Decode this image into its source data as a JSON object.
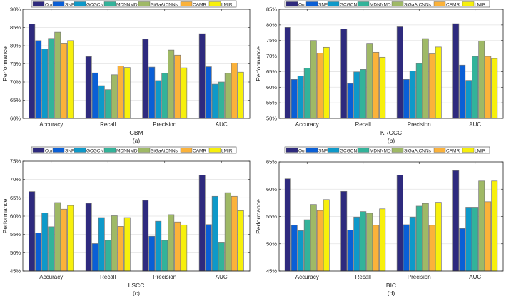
{
  "legend_series": [
    "Ours",
    "SNF",
    "GCGCN",
    "MDNNMD",
    "SiGaAtCNNs",
    "CAMR",
    "LMIR"
  ],
  "series_colors": [
    "#2e2a7e",
    "#0a5fd6",
    "#0e99c9",
    "#33b39a",
    "#9fb966",
    "#fbb23a",
    "#f7f00c"
  ],
  "chart_data": [
    {
      "type": "bar",
      "panel_label": "(a)",
      "xlabel": "GBM",
      "ylabel": "Performance",
      "ylim": [
        60,
        90
      ],
      "yticks": [
        60,
        65,
        70,
        75,
        80,
        85,
        90
      ],
      "tick_suffix": "%",
      "grid": true,
      "legend_placement": "top-center",
      "categories": [
        "Accuracy",
        "Recall",
        "Precision",
        "AUC"
      ],
      "series": [
        {
          "name": "Ours",
          "values": [
            86.0,
            77.0,
            81.8,
            83.3
          ]
        },
        {
          "name": "SNF",
          "values": [
            81.4,
            72.5,
            74.1,
            74.2
          ]
        },
        {
          "name": "GCGCN",
          "values": [
            79.1,
            69.0,
            70.4,
            69.4
          ]
        },
        {
          "name": "MDNNMD",
          "values": [
            82.0,
            67.9,
            72.4,
            70.0
          ]
        },
        {
          "name": "SiGaAtCNNs",
          "values": [
            83.7,
            72.0,
            78.8,
            72.4
          ]
        },
        {
          "name": "CAMR",
          "values": [
            80.7,
            74.4,
            77.4,
            75.2
          ]
        },
        {
          "name": "LMIR",
          "values": [
            81.4,
            74.0,
            73.9,
            72.7
          ]
        }
      ]
    },
    {
      "type": "bar",
      "panel_label": "(b)",
      "xlabel": "KRCCC",
      "ylabel": "Performance",
      "ylim": [
        50,
        85
      ],
      "yticks": [
        50,
        55,
        60,
        65,
        70,
        75,
        80,
        85
      ],
      "tick_suffix": "%",
      "grid": true,
      "legend_placement": "top-center",
      "categories": [
        "Accuracy",
        "Recall",
        "Precision",
        "AUC"
      ],
      "series": [
        {
          "name": "Ours",
          "values": [
            79.2,
            78.7,
            79.4,
            80.4
          ]
        },
        {
          "name": "SNF",
          "values": [
            62.5,
            61.2,
            62.5,
            67.1
          ]
        },
        {
          "name": "GCGCN",
          "values": [
            63.6,
            64.9,
            65.2,
            62.2
          ]
        },
        {
          "name": "MDNNMD",
          "values": [
            66.1,
            65.7,
            67.6,
            69.9
          ]
        },
        {
          "name": "SiGaAtCNNs",
          "values": [
            75.0,
            74.1,
            75.6,
            74.8
          ]
        },
        {
          "name": "CAMR",
          "values": [
            70.9,
            71.2,
            70.7,
            69.9
          ]
        },
        {
          "name": "LMIR",
          "values": [
            72.8,
            69.6,
            72.9,
            69.2
          ]
        }
      ]
    },
    {
      "type": "bar",
      "panel_label": "(c)",
      "xlabel": "LSCC",
      "ylabel": "Performance",
      "ylim": [
        45,
        75
      ],
      "yticks": [
        45,
        50,
        55,
        60,
        65,
        70,
        75
      ],
      "tick_suffix": "%",
      "grid": true,
      "legend_placement": "top-center",
      "categories": [
        "Accuracy",
        "Recall",
        "Precision",
        "AUC"
      ],
      "series": [
        {
          "name": "Ours",
          "values": [
            66.7,
            63.5,
            64.3,
            71.2
          ]
        },
        {
          "name": "SNF",
          "values": [
            55.4,
            52.5,
            54.5,
            57.7
          ]
        },
        {
          "name": "GCGCN",
          "values": [
            60.9,
            59.6,
            58.6,
            65.4
          ]
        },
        {
          "name": "MDNNMD",
          "values": [
            57.1,
            53.4,
            53.4,
            52.9
          ]
        },
        {
          "name": "SiGaAtCNNs",
          "values": [
            63.7,
            60.1,
            60.4,
            66.4
          ]
        },
        {
          "name": "CAMR",
          "values": [
            61.9,
            57.2,
            58.4,
            65.4
          ]
        },
        {
          "name": "LMIR",
          "values": [
            62.9,
            59.6,
            57.6,
            61.5
          ]
        }
      ]
    },
    {
      "type": "bar",
      "panel_label": "(d)",
      "xlabel": "BIC",
      "ylabel": "Performance",
      "ylim": [
        45,
        65
      ],
      "yticks": [
        45,
        50,
        55,
        60,
        65
      ],
      "tick_suffix": "%",
      "grid": true,
      "legend_placement": "top-center",
      "categories": [
        "Accuracy",
        "Recall",
        "Precision",
        "AUC"
      ],
      "series": [
        {
          "name": "Ours",
          "values": [
            61.9,
            59.6,
            62.6,
            63.4
          ]
        },
        {
          "name": "SNF",
          "values": [
            53.4,
            52.5,
            53.5,
            52.8
          ]
        },
        {
          "name": "GCGCN",
          "values": [
            52.4,
            54.9,
            54.9,
            56.7
          ]
        },
        {
          "name": "MDNNMD",
          "values": [
            54.4,
            55.9,
            56.9,
            56.7
          ]
        },
        {
          "name": "SiGaAtCNNs",
          "values": [
            57.2,
            55.6,
            57.4,
            61.5
          ]
        },
        {
          "name": "CAMR",
          "values": [
            56.1,
            53.4,
            53.4,
            57.7
          ]
        },
        {
          "name": "LMIR",
          "values": [
            58.1,
            56.4,
            57.6,
            61.5
          ]
        }
      ]
    }
  ]
}
